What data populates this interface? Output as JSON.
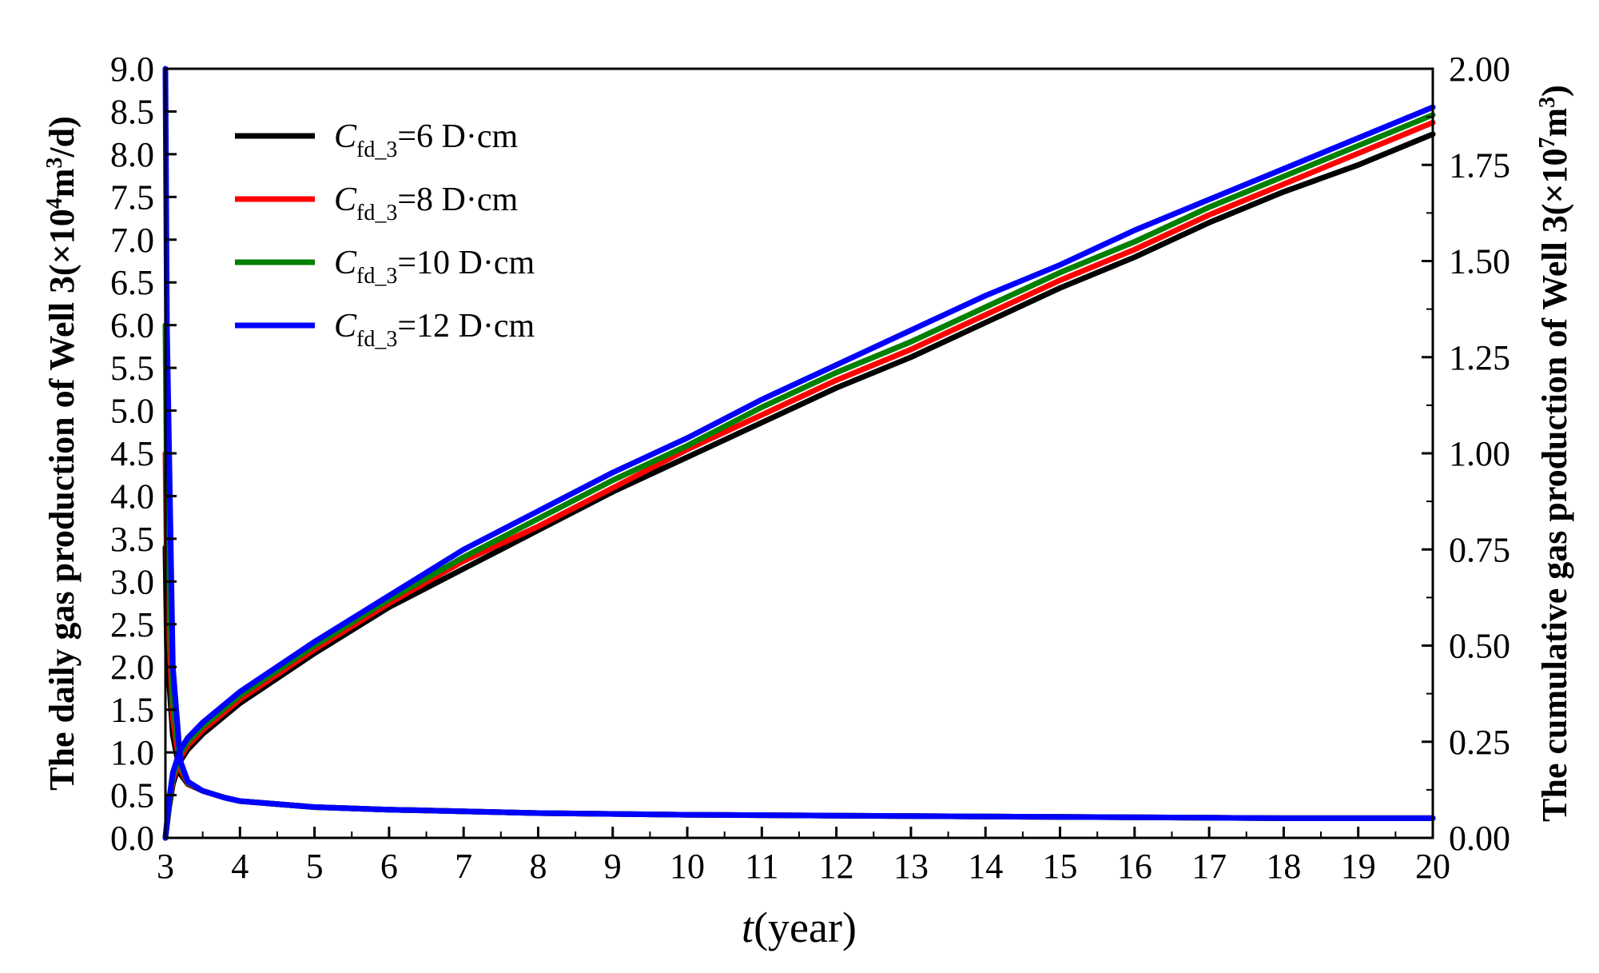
{
  "chart_data": {
    "type": "line",
    "title": "",
    "xlabel": {
      "var": "t",
      "unit": "(year)"
    },
    "ylabel_left": {
      "text": "The daily gas production of Well 3(×10",
      "exp": "4",
      "mid": "m",
      "exp2": "3",
      "tail": "/d)"
    },
    "ylabel_right": {
      "text": "The cumulative gas production of Well 3(×10",
      "exp": "7",
      "mid": "m",
      "exp2": "3",
      "tail": ")"
    },
    "xlim": [
      3,
      20
    ],
    "ylim_left": [
      0,
      9
    ],
    "ylim_right": [
      0,
      2
    ],
    "x_ticks": [
      "3",
      "4",
      "5",
      "6",
      "7",
      "8",
      "9",
      "10",
      "11",
      "12",
      "13",
      "14",
      "15",
      "16",
      "17",
      "18",
      "19",
      "20"
    ],
    "y_left_ticks": [
      "0.0",
      "0.5",
      "1.0",
      "1.5",
      "2.0",
      "2.5",
      "3.0",
      "3.5",
      "4.0",
      "4.5",
      "5.0",
      "5.5",
      "6.0",
      "6.5",
      "7.0",
      "7.5",
      "8.0",
      "8.5",
      "9.0"
    ],
    "y_right_ticks": [
      "0.00",
      "0.25",
      "0.50",
      "0.75",
      "1.00",
      "1.25",
      "1.50",
      "1.75",
      "2.00"
    ],
    "legend_position": "top-left",
    "series": [
      {
        "name": "Cfd_3=6 D·cm",
        "legend_main": "C",
        "legend_sub": "fd_3",
        "legend_tail": "=6 D·cm",
        "color": "#000000",
        "daily": {
          "x": [
            3.0,
            3.02,
            3.1,
            3.2,
            3.3,
            3.5,
            3.8,
            4,
            5,
            6,
            8,
            10,
            12,
            14,
            16,
            18,
            20
          ],
          "y": [
            3.4,
            2.2,
            1.2,
            0.75,
            0.63,
            0.55,
            0.47,
            0.43,
            0.36,
            0.33,
            0.29,
            0.27,
            0.26,
            0.25,
            0.24,
            0.23,
            0.23
          ]
        },
        "cumulative": {
          "x": [
            3.0,
            3.05,
            3.1,
            3.2,
            3.3,
            3.5,
            4,
            5,
            6,
            7,
            8,
            9,
            10,
            11,
            12,
            13,
            14,
            15,
            16,
            17,
            18,
            19,
            20
          ],
          "y": [
            0.0,
            0.08,
            0.14,
            0.2,
            0.23,
            0.27,
            0.35,
            0.48,
            0.6,
            0.7,
            0.8,
            0.9,
            0.99,
            1.08,
            1.17,
            1.25,
            1.34,
            1.43,
            1.51,
            1.6,
            1.68,
            1.75,
            1.83
          ]
        }
      },
      {
        "name": "Cfd_3=8 D·cm",
        "legend_main": "C",
        "legend_sub": "fd_3",
        "legend_tail": "=8 D·cm",
        "color": "#ff0000",
        "daily": {
          "x": [
            3.0,
            3.02,
            3.1,
            3.2,
            3.3,
            3.5,
            3.8,
            4,
            5,
            6,
            8,
            10,
            12,
            14,
            16,
            18,
            20
          ],
          "y": [
            4.5,
            3.0,
            1.4,
            0.8,
            0.64,
            0.55,
            0.47,
            0.43,
            0.36,
            0.33,
            0.29,
            0.27,
            0.26,
            0.25,
            0.24,
            0.23,
            0.23
          ]
        },
        "cumulative": {
          "x": [
            3.0,
            3.05,
            3.1,
            3.2,
            3.3,
            3.5,
            4,
            5,
            6,
            7,
            8,
            9,
            10,
            11,
            12,
            13,
            14,
            15,
            16,
            17,
            18,
            19,
            20
          ],
          "y": [
            0.0,
            0.09,
            0.15,
            0.21,
            0.24,
            0.28,
            0.36,
            0.49,
            0.61,
            0.72,
            0.81,
            0.91,
            1.01,
            1.1,
            1.19,
            1.27,
            1.36,
            1.45,
            1.53,
            1.62,
            1.7,
            1.78,
            1.86
          ]
        }
      },
      {
        "name": "Cfd_3=10 D·cm",
        "legend_main": "C",
        "legend_sub": "fd_3",
        "legend_tail": "=10 D·cm",
        "color": "#008000",
        "daily": {
          "x": [
            3.0,
            3.02,
            3.1,
            3.2,
            3.3,
            3.5,
            3.8,
            4,
            5,
            6,
            8,
            10,
            12,
            14,
            16,
            18,
            20
          ],
          "y": [
            6.0,
            4.0,
            1.6,
            0.85,
            0.65,
            0.55,
            0.47,
            0.43,
            0.36,
            0.33,
            0.29,
            0.27,
            0.26,
            0.25,
            0.24,
            0.23,
            0.23
          ]
        },
        "cumulative": {
          "x": [
            3.0,
            3.05,
            3.1,
            3.2,
            3.3,
            3.5,
            4,
            5,
            6,
            7,
            8,
            9,
            10,
            11,
            12,
            13,
            14,
            15,
            16,
            17,
            18,
            19,
            20
          ],
          "y": [
            0.0,
            0.09,
            0.16,
            0.22,
            0.25,
            0.29,
            0.37,
            0.5,
            0.62,
            0.73,
            0.83,
            0.93,
            1.02,
            1.12,
            1.21,
            1.29,
            1.38,
            1.47,
            1.55,
            1.64,
            1.72,
            1.8,
            1.88
          ]
        }
      },
      {
        "name": "Cfd_3=12 D·cm",
        "legend_main": "C",
        "legend_sub": "fd_3",
        "legend_tail": "=12 D·cm",
        "color": "#0000ff",
        "daily": {
          "x": [
            3.0,
            3.02,
            3.1,
            3.2,
            3.3,
            3.5,
            3.8,
            4,
            5,
            6,
            8,
            10,
            12,
            14,
            16,
            18,
            20
          ],
          "y": [
            9.0,
            6.0,
            2.0,
            0.9,
            0.66,
            0.55,
            0.47,
            0.43,
            0.36,
            0.33,
            0.29,
            0.27,
            0.26,
            0.25,
            0.24,
            0.23,
            0.23
          ]
        },
        "cumulative": {
          "x": [
            3.0,
            3.05,
            3.1,
            3.2,
            3.3,
            3.5,
            4,
            5,
            6,
            7,
            8,
            9,
            10,
            11,
            12,
            13,
            14,
            15,
            16,
            17,
            18,
            19,
            20
          ],
          "y": [
            0.0,
            0.1,
            0.17,
            0.23,
            0.26,
            0.3,
            0.38,
            0.51,
            0.63,
            0.75,
            0.85,
            0.95,
            1.04,
            1.14,
            1.23,
            1.32,
            1.41,
            1.49,
            1.58,
            1.66,
            1.74,
            1.82,
            1.9
          ]
        }
      }
    ]
  }
}
